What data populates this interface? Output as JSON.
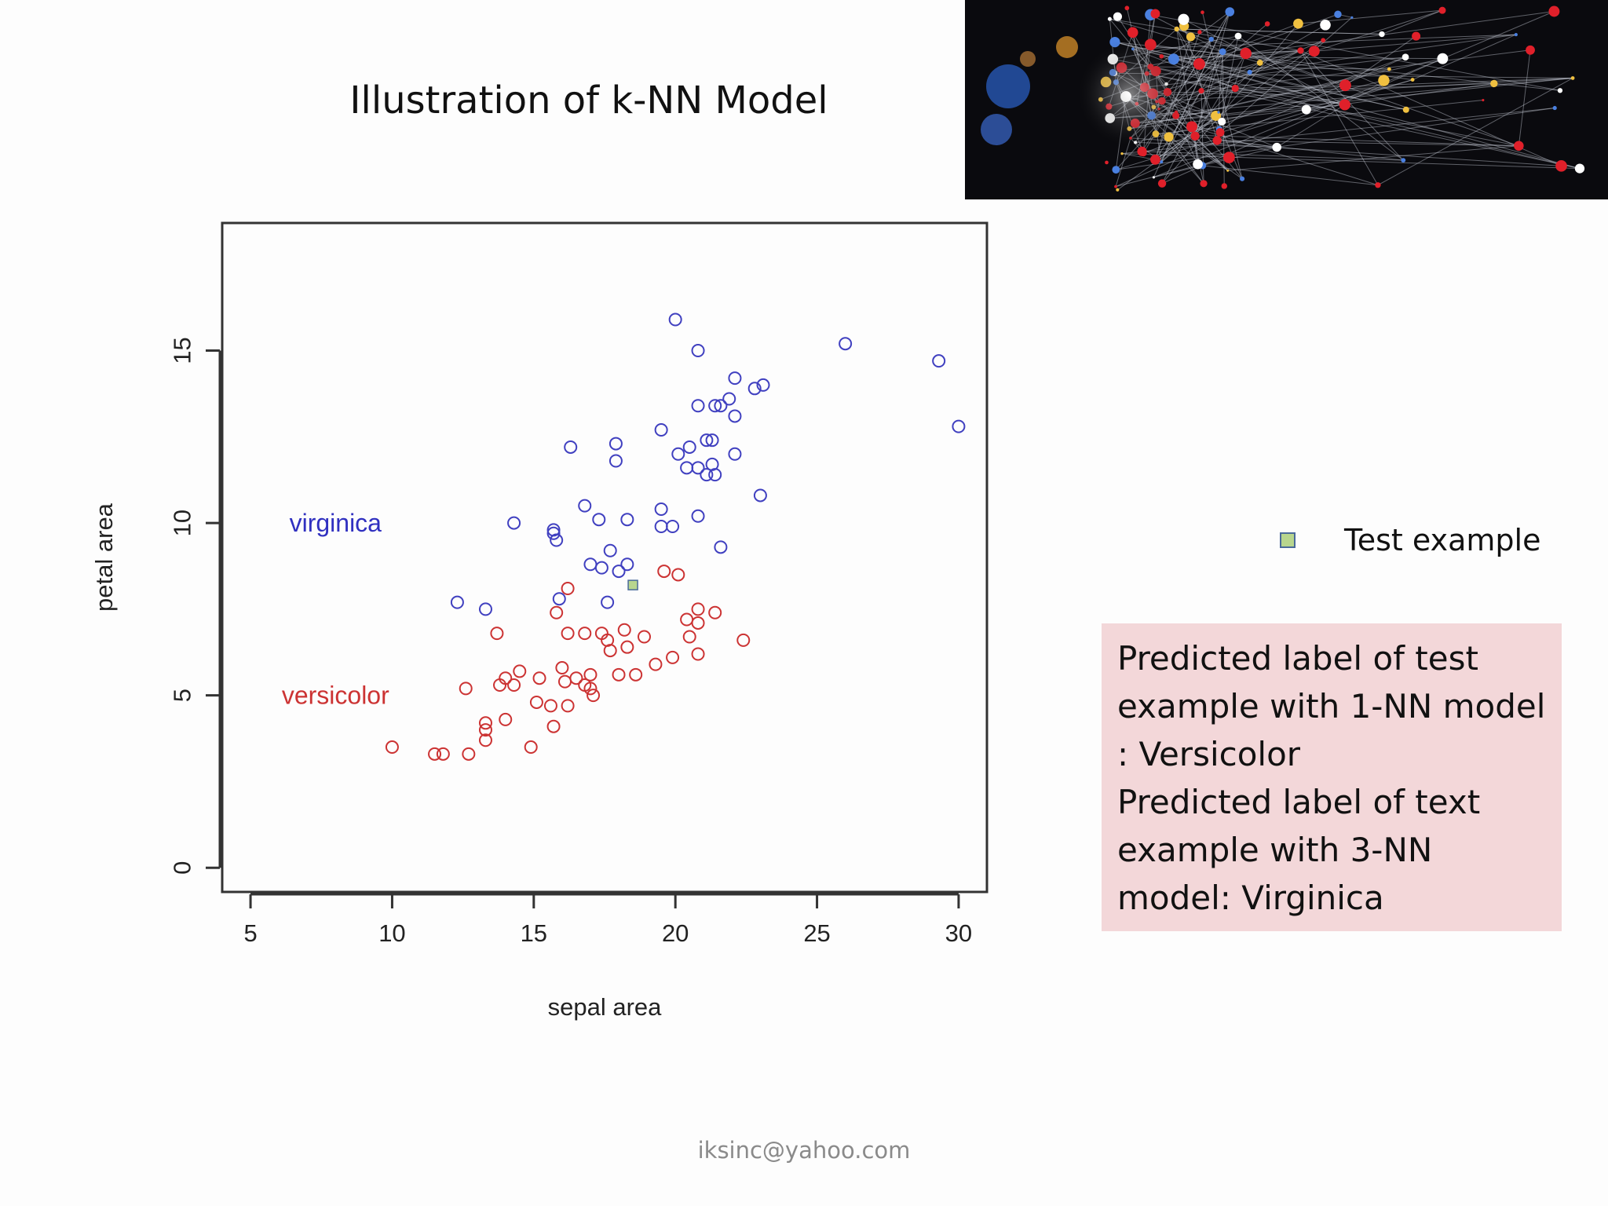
{
  "slide": {
    "title": "Illustration of k-NN Model",
    "footer": "iksinc@yahoo.com",
    "image_icon": "network-graph-image"
  },
  "legend": {
    "test_label": "Test example"
  },
  "prediction": {
    "line1": "Predicted label of test example with 1-NN model : Versicolor",
    "line2": "Predicted label of text example with 3-NN model: Virginica"
  },
  "chart_data": {
    "type": "scatter",
    "title": "",
    "xlabel": "sepal area",
    "ylabel": "petal area",
    "xlim": [
      4,
      31
    ],
    "ylim": [
      -0.7,
      18.7
    ],
    "xticks": [
      5,
      10,
      15,
      20,
      25,
      30
    ],
    "yticks": [
      0,
      5,
      10,
      15
    ],
    "grid": false,
    "colors": {
      "virginica": "#4040c0",
      "versicolor": "#cc3333",
      "test": "#b8d68e"
    },
    "annotations": [
      {
        "text": "virginica",
        "x": 8.0,
        "y": 10.0,
        "color": "#3030c0"
      },
      {
        "text": "versicolor",
        "x": 8.0,
        "y": 5.0,
        "color": "#cc3333"
      }
    ],
    "series": [
      {
        "name": "virginica",
        "marker": "circle",
        "points": [
          [
            20.0,
            15.9
          ],
          [
            20.8,
            15.0
          ],
          [
            26.0,
            15.2
          ],
          [
            29.3,
            14.7
          ],
          [
            30.0,
            12.8
          ],
          [
            22.1,
            14.2
          ],
          [
            22.8,
            13.9
          ],
          [
            23.1,
            14.0
          ],
          [
            20.8,
            13.4
          ],
          [
            21.4,
            13.4
          ],
          [
            21.6,
            13.4
          ],
          [
            21.9,
            13.6
          ],
          [
            22.1,
            13.1
          ],
          [
            19.5,
            12.7
          ],
          [
            16.3,
            12.2
          ],
          [
            17.9,
            12.3
          ],
          [
            17.9,
            11.8
          ],
          [
            20.1,
            12.0
          ],
          [
            20.5,
            12.2
          ],
          [
            21.1,
            12.4
          ],
          [
            21.3,
            12.4
          ],
          [
            22.1,
            12.0
          ],
          [
            20.4,
            11.6
          ],
          [
            20.8,
            11.6
          ],
          [
            21.3,
            11.7
          ],
          [
            21.1,
            11.4
          ],
          [
            21.4,
            11.4
          ],
          [
            23.0,
            10.8
          ],
          [
            16.8,
            10.5
          ],
          [
            17.3,
            10.1
          ],
          [
            18.3,
            10.1
          ],
          [
            19.5,
            10.4
          ],
          [
            19.5,
            9.9
          ],
          [
            19.9,
            9.9
          ],
          [
            20.8,
            10.2
          ],
          [
            14.3,
            10.0
          ],
          [
            15.7,
            9.8
          ],
          [
            15.7,
            9.7
          ],
          [
            15.8,
            9.5
          ],
          [
            17.7,
            9.2
          ],
          [
            21.6,
            9.3
          ],
          [
            17.0,
            8.8
          ],
          [
            17.4,
            8.7
          ],
          [
            18.0,
            8.6
          ],
          [
            18.3,
            8.8
          ],
          [
            15.9,
            7.8
          ],
          [
            17.6,
            7.7
          ],
          [
            12.3,
            7.7
          ],
          [
            13.3,
            7.5
          ]
        ]
      },
      {
        "name": "versicolor",
        "marker": "circle",
        "points": [
          [
            19.6,
            8.6
          ],
          [
            20.1,
            8.5
          ],
          [
            16.2,
            8.1
          ],
          [
            15.8,
            7.4
          ],
          [
            20.8,
            7.5
          ],
          [
            21.4,
            7.4
          ],
          [
            20.4,
            7.2
          ],
          [
            20.8,
            7.1
          ],
          [
            13.7,
            6.8
          ],
          [
            16.2,
            6.8
          ],
          [
            16.8,
            6.8
          ],
          [
            17.4,
            6.8
          ],
          [
            18.2,
            6.9
          ],
          [
            18.9,
            6.7
          ],
          [
            20.5,
            6.7
          ],
          [
            22.4,
            6.6
          ],
          [
            17.6,
            6.6
          ],
          [
            17.7,
            6.3
          ],
          [
            18.3,
            6.4
          ],
          [
            19.9,
            6.1
          ],
          [
            20.8,
            6.2
          ],
          [
            19.3,
            5.9
          ],
          [
            16.0,
            5.8
          ],
          [
            14.5,
            5.7
          ],
          [
            12.6,
            5.2
          ],
          [
            14.0,
            5.5
          ],
          [
            13.8,
            5.3
          ],
          [
            14.3,
            5.3
          ],
          [
            15.2,
            5.5
          ],
          [
            16.1,
            5.4
          ],
          [
            16.5,
            5.5
          ],
          [
            16.8,
            5.3
          ],
          [
            17.0,
            5.2
          ],
          [
            17.0,
            5.6
          ],
          [
            17.1,
            5.0
          ],
          [
            18.0,
            5.6
          ],
          [
            18.6,
            5.6
          ],
          [
            15.1,
            4.8
          ],
          [
            15.6,
            4.7
          ],
          [
            16.2,
            4.7
          ],
          [
            14.0,
            4.3
          ],
          [
            13.3,
            4.2
          ],
          [
            13.3,
            4.0
          ],
          [
            13.3,
            3.7
          ],
          [
            15.7,
            4.1
          ],
          [
            10.0,
            3.5
          ],
          [
            14.9,
            3.5
          ],
          [
            11.5,
            3.3
          ],
          [
            11.8,
            3.3
          ],
          [
            12.7,
            3.3
          ]
        ]
      },
      {
        "name": "test",
        "marker": "square",
        "points": [
          [
            18.5,
            8.2
          ]
        ]
      }
    ]
  }
}
